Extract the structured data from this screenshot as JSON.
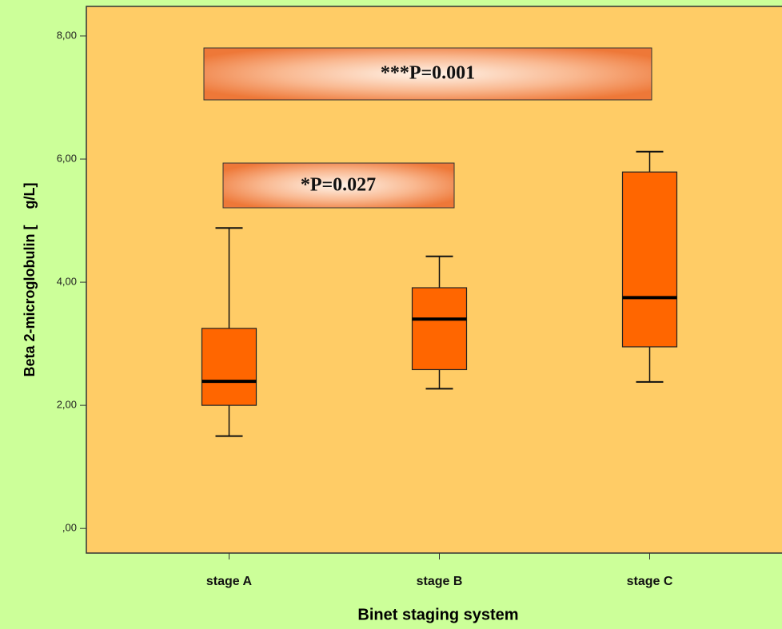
{
  "chart_data": {
    "type": "box",
    "x_label": "Binet staging system",
    "y_label": "Beta 2-microglobulin [    g/L]",
    "annotations": [
      "***P=0.001",
      "*P=0.027"
    ],
    "categories": [
      "stage A",
      "stage B",
      "stage C"
    ],
    "color": "#ff6600",
    "low": [
      1.5,
      2.27,
      2.38
    ],
    "q1": [
      2.0,
      2.58,
      2.95
    ],
    "median": [
      2.39,
      3.4,
      3.75
    ],
    "q3": [
      3.25,
      3.91,
      5.79
    ],
    "high": [
      4.88,
      4.42,
      6.12
    ],
    "ylim": [
      -0.4,
      8.48
    ],
    "yticks": [
      {
        "value": 0,
        "label": ",00"
      },
      {
        "value": 2,
        "label": "2,00"
      },
      {
        "value": 4,
        "label": "4,00"
      },
      {
        "value": 6,
        "label": "6,00"
      },
      {
        "value": 8,
        "label": "8,00"
      }
    ]
  }
}
